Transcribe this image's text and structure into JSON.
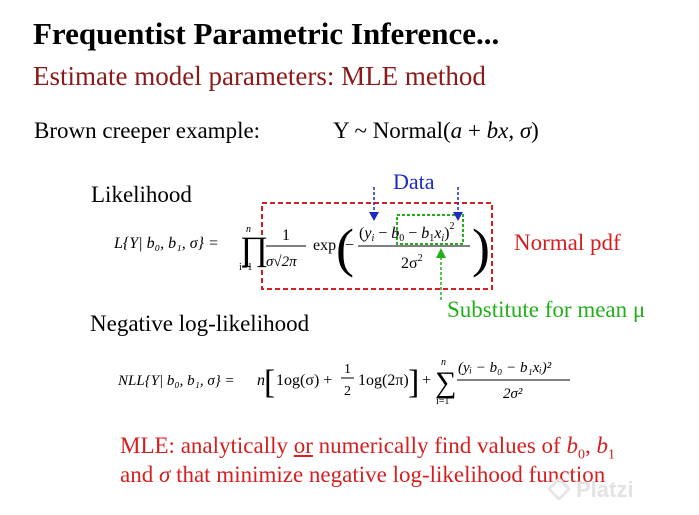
{
  "slide": {
    "title": "Frequentist Parametric Inference...",
    "subtitle": "Estimate model parameters: MLE method",
    "example_label": "Brown creeper example:",
    "example_model": {
      "prefix": "Y ~ Normal(",
      "a": "a",
      "plus": " + ",
      "bx": "bx",
      "comma": ", ",
      "sigma": "σ",
      "suffix": ")"
    },
    "likelihood_label": "Likelihood",
    "data_label": "Data",
    "normal_pdf_label": "Normal pdf",
    "substitute_label": "Substitute for mean μ",
    "nll_label": "Negative log-likelihood",
    "likelihood_eq": {
      "lhs": "L{Y| b₀, b₁, σ} =",
      "prod_top": "n",
      "prod_bottom": "i=1",
      "frac_num": "1",
      "frac_den": "σ√2π",
      "exp": "exp",
      "minus": "−",
      "yi": "y",
      "sub_i": "i",
      "b0": "b",
      "b1xi": "b",
      "x": "x",
      "sq": "2",
      "den": "2σ"
    },
    "nll_eq": {
      "lhs": "NLL{Y| b₀, b₁, σ} =",
      "n": "n",
      "part1": "1og(σ) +",
      "half_num": "1",
      "half_den": "2",
      "part2": "1og(2π)",
      "plus": "+",
      "sum_top": "n",
      "sum_bottom": "i=1",
      "frac_num": "(yᵢ − b₀ − b₁xᵢ)²",
      "frac_den": "2σ²"
    },
    "mle_line1": {
      "text1": "MLE: analytically ",
      "or": "or",
      "text2": " numerically find values of ",
      "b0": "b",
      "sub0": "0",
      "comma": ", ",
      "b1": "b",
      "sub1": "1"
    },
    "mle_line2": {
      "text1": "and ",
      "sigma": "σ",
      "text2": " that minimize negative log-likelihood function"
    },
    "watermark": "Platzi"
  },
  "colors": {
    "title": "#000000",
    "subtitle": "#8b1a1a",
    "data_label": "#1f2bbf",
    "normal_pdf": "#d42020",
    "substitute": "#22b01a",
    "mle": "#d42020",
    "box_red": "#d42020",
    "box_green": "#22b01a",
    "arrow_blue": "#1f2bbf"
  }
}
